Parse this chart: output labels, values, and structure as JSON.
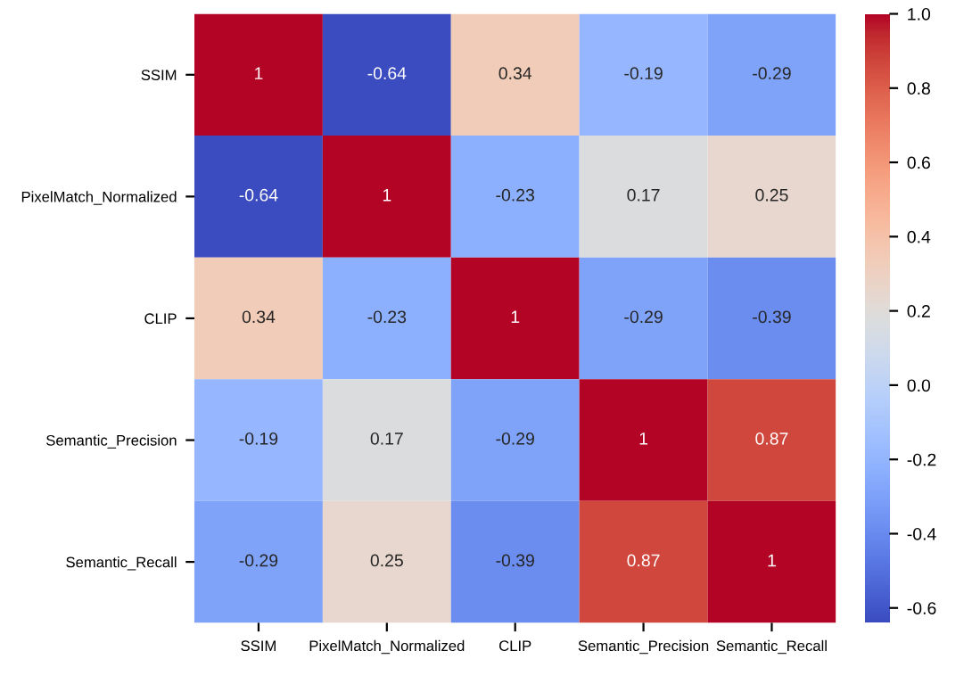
{
  "chart_data": {
    "type": "heatmap",
    "categories": [
      "SSIM",
      "PixelMatch_Normalized",
      "CLIP",
      "Semantic_Precision",
      "Semantic_Recall"
    ],
    "y_categories": [
      "SSIM",
      "PixelMatch_Normalized",
      "CLIP",
      "Semantic_Precision",
      "Semantic_Recall"
    ],
    "cells": [
      [
        1,
        -0.64,
        0.34,
        -0.19,
        -0.29
      ],
      [
        -0.64,
        1,
        -0.23,
        0.17,
        0.25
      ],
      [
        0.34,
        -0.23,
        1,
        -0.29,
        -0.39
      ],
      [
        -0.19,
        0.17,
        -0.29,
        1,
        0.87
      ],
      [
        -0.29,
        0.25,
        -0.39,
        0.87,
        1
      ]
    ],
    "clim": [
      -0.64,
      1
    ],
    "cticks": [
      -0.6,
      -0.4,
      -0.2,
      {
        "value": 0,
        "label": "0.0"
      },
      0.2,
      0.4,
      0.6,
      0.8,
      {
        "value": 1,
        "label": "1.0"
      }
    ],
    "data_labels": true
  }
}
